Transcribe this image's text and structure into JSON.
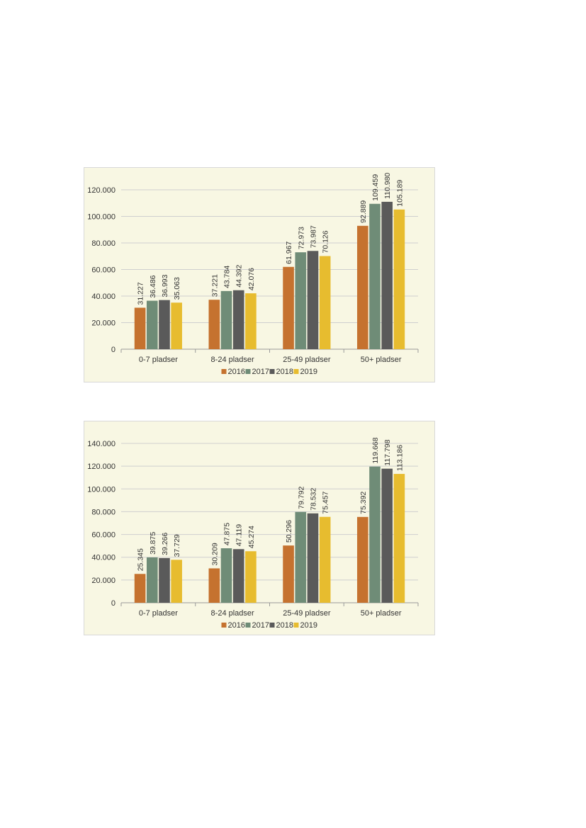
{
  "colors": {
    "2016": "#c5722f",
    "2017": "#6f8c77",
    "2018": "#5a5a5a",
    "2019": "#e7bc2f"
  },
  "chart_data": [
    {
      "type": "bar",
      "categories": [
        "0-7 pladser",
        "8-24 pladser",
        "25-49 pladser",
        "50+ pladser"
      ],
      "series": [
        {
          "name": "2016",
          "values": [
            31227,
            37221,
            61967,
            92889
          ]
        },
        {
          "name": "2017",
          "values": [
            36486,
            43784,
            72973,
            109459
          ]
        },
        {
          "name": "2018",
          "values": [
            36993,
            44392,
            73987,
            110980
          ]
        },
        {
          "name": "2019",
          "values": [
            35063,
            42076,
            70126,
            105189
          ]
        }
      ],
      "value_labels": [
        [
          "31.227",
          "37.221",
          "61.967",
          "92.889"
        ],
        [
          "36.486",
          "43.784",
          "72.973",
          "109.459"
        ],
        [
          "36.993",
          "44.392",
          "73.987",
          "110.980"
        ],
        [
          "35.063",
          "42.076",
          "70.126",
          "105.189"
        ]
      ],
      "yticks": [
        0,
        20000,
        40000,
        60000,
        80000,
        100000,
        120000
      ],
      "ytick_labels": [
        "0",
        "20.000",
        "40.000",
        "60.000",
        "80.000",
        "100.000",
        "120.000"
      ],
      "ylim": [
        0,
        120000
      ],
      "grid": true,
      "legend": "bottom"
    },
    {
      "type": "bar",
      "categories": [
        "0-7 pladser",
        "8-24 pladser",
        "25-49 pladser",
        "50+ pladser"
      ],
      "series": [
        {
          "name": "2016",
          "values": [
            25345,
            30209,
            50296,
            75392
          ]
        },
        {
          "name": "2017",
          "values": [
            39875,
            47875,
            79792,
            119668
          ]
        },
        {
          "name": "2018",
          "values": [
            39266,
            47119,
            78532,
            117798
          ]
        },
        {
          "name": "2019",
          "values": [
            37729,
            45274,
            75457,
            113186
          ]
        }
      ],
      "value_labels": [
        [
          "25.345",
          "30.209",
          "50.296",
          "75.392"
        ],
        [
          "39.875",
          "47.875",
          "79.792",
          "119.668"
        ],
        [
          "39.266",
          "47.119",
          "78.532",
          "117.798"
        ],
        [
          "37.729",
          "45.274",
          "75.457",
          "113.186"
        ]
      ],
      "yticks": [
        0,
        20000,
        40000,
        60000,
        80000,
        100000,
        120000,
        140000
      ],
      "ytick_labels": [
        "0",
        "20.000",
        "40.000",
        "60.000",
        "80.000",
        "100.000",
        "120.000",
        "140.000"
      ],
      "ylim": [
        0,
        140000
      ],
      "grid": true,
      "legend": "bottom"
    }
  ]
}
